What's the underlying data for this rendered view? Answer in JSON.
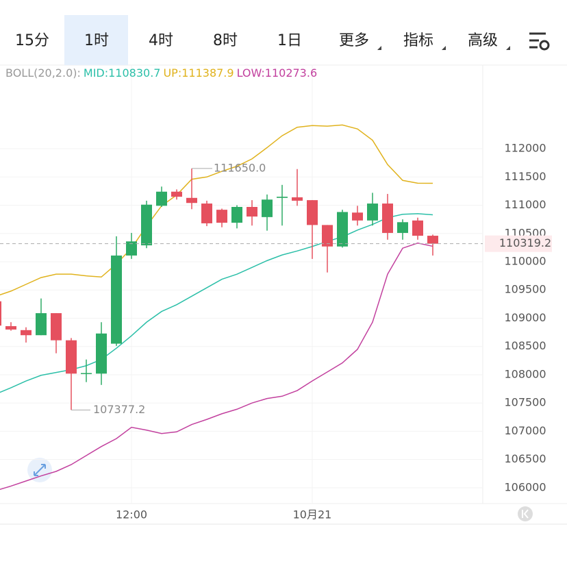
{
  "tabs": [
    "15分",
    "1时",
    "4时",
    "8时",
    "1日",
    "更多",
    "指标",
    "高级"
  ],
  "selected_tab": 1,
  "chart_data": {
    "type": "candlestick",
    "indicator": "BOLL(20,2.0):",
    "bands": {
      "mid": {
        "label": "MID:110830.7",
        "color": "#2bbfa8",
        "values": [
          107660,
          107770,
          107890,
          107990,
          108040,
          108090,
          108160,
          108270,
          108470,
          108690,
          108930,
          109120,
          109240,
          109390,
          109540,
          109690,
          109780,
          109900,
          110020,
          110120,
          110190,
          110270,
          110360,
          110440,
          110560,
          110660,
          110780,
          110840,
          110850,
          110830.7
        ]
      },
      "up": {
        "label": "UP:111387.9",
        "color": "#e0b21c",
        "values": [
          109390,
          109480,
          109600,
          109720,
          109780,
          109780,
          109750,
          109730,
          109960,
          110240,
          110630,
          110990,
          111180,
          111460,
          111500,
          111600,
          111690,
          111820,
          112020,
          112230,
          112380,
          112410,
          112400,
          112420,
          112350,
          112150,
          111720,
          111440,
          111390,
          111387.9
        ]
      },
      "low": {
        "label": "LOW:110273.6",
        "color": "#c2409e",
        "values": [
          105950,
          106030,
          106120,
          106210,
          106290,
          106410,
          106570,
          106730,
          106870,
          107070,
          107020,
          106960,
          106990,
          107120,
          107210,
          107310,
          107390,
          107500,
          107580,
          107620,
          107720,
          107890,
          108050,
          108210,
          108450,
          108930,
          109780,
          110240,
          110330,
          110273.6
        ]
      }
    },
    "categories": [
      null,
      null,
      null,
      null,
      null,
      null,
      null,
      null,
      null,
      "12:00",
      null,
      null,
      null,
      null,
      null,
      null,
      null,
      null,
      null,
      null,
      null,
      "10月21",
      null,
      null,
      null,
      null,
      null,
      null,
      null,
      null
    ],
    "open": [
      109300,
      108860,
      108790,
      108700,
      109090,
      108610,
      108020,
      108020,
      108550,
      110110,
      110290,
      110990,
      111240,
      111130,
      111030,
      110920,
      110690,
      110970,
      110790,
      111130,
      111140,
      111090,
      110650,
      110270,
      110870,
      110730,
      111030,
      110510,
      110730,
      110460
    ],
    "high": [
      109350,
      108930,
      108840,
      109350,
      109090,
      108650,
      108270,
      108930,
      110450,
      110510,
      111080,
      111330,
      111280,
      111650,
      111080,
      110940,
      111000,
      111090,
      111190,
      111360,
      111640,
      111090,
      110650,
      110920,
      110990,
      111220,
      111200,
      110750,
      110780,
      110480
    ],
    "low": [
      108800,
      108780,
      108570,
      108700,
      108380,
      107377.2,
      107870,
      107820,
      108510,
      110050,
      110240,
      110970,
      111100,
      110930,
      110630,
      110610,
      110590,
      110640,
      110550,
      110640,
      110990,
      110050,
      109810,
      110250,
      110640,
      110640,
      110390,
      110390,
      110390,
      110110
    ],
    "close": [
      108870,
      108800,
      108700,
      109090,
      108610,
      108020,
      108030,
      108730,
      110110,
      110360,
      111010,
      111240,
      111150,
      111040,
      110680,
      110690,
      110970,
      110800,
      111100,
      111150,
      111080,
      110650,
      110270,
      110880,
      110730,
      111030,
      110510,
      110700,
      110460,
      110319.2
    ],
    "high_labels": [
      null,
      null,
      null,
      null,
      null,
      null,
      null,
      null,
      null,
      null,
      null,
      null,
      null,
      "111650.0",
      null,
      null,
      null,
      null,
      null,
      null,
      null,
      null,
      null,
      null,
      null,
      null,
      null,
      null,
      null,
      null
    ],
    "low_labels": [
      null,
      null,
      null,
      null,
      null,
      "107377.2",
      null,
      null,
      null,
      null,
      null,
      null,
      null,
      null,
      null,
      null,
      null,
      null,
      null,
      null,
      null,
      null,
      null,
      null,
      null,
      null,
      null,
      null,
      null,
      null
    ],
    "last_price": 110319.2,
    "up_color": "#2dab66",
    "down_color": "#e5505e",
    "ylim": [
      105720,
      113480
    ],
    "yticks": [
      106000,
      106500,
      107000,
      107500,
      108000,
      108500,
      109000,
      109500,
      110000,
      110500,
      111000,
      111500,
      112000
    ],
    "grid": true
  }
}
